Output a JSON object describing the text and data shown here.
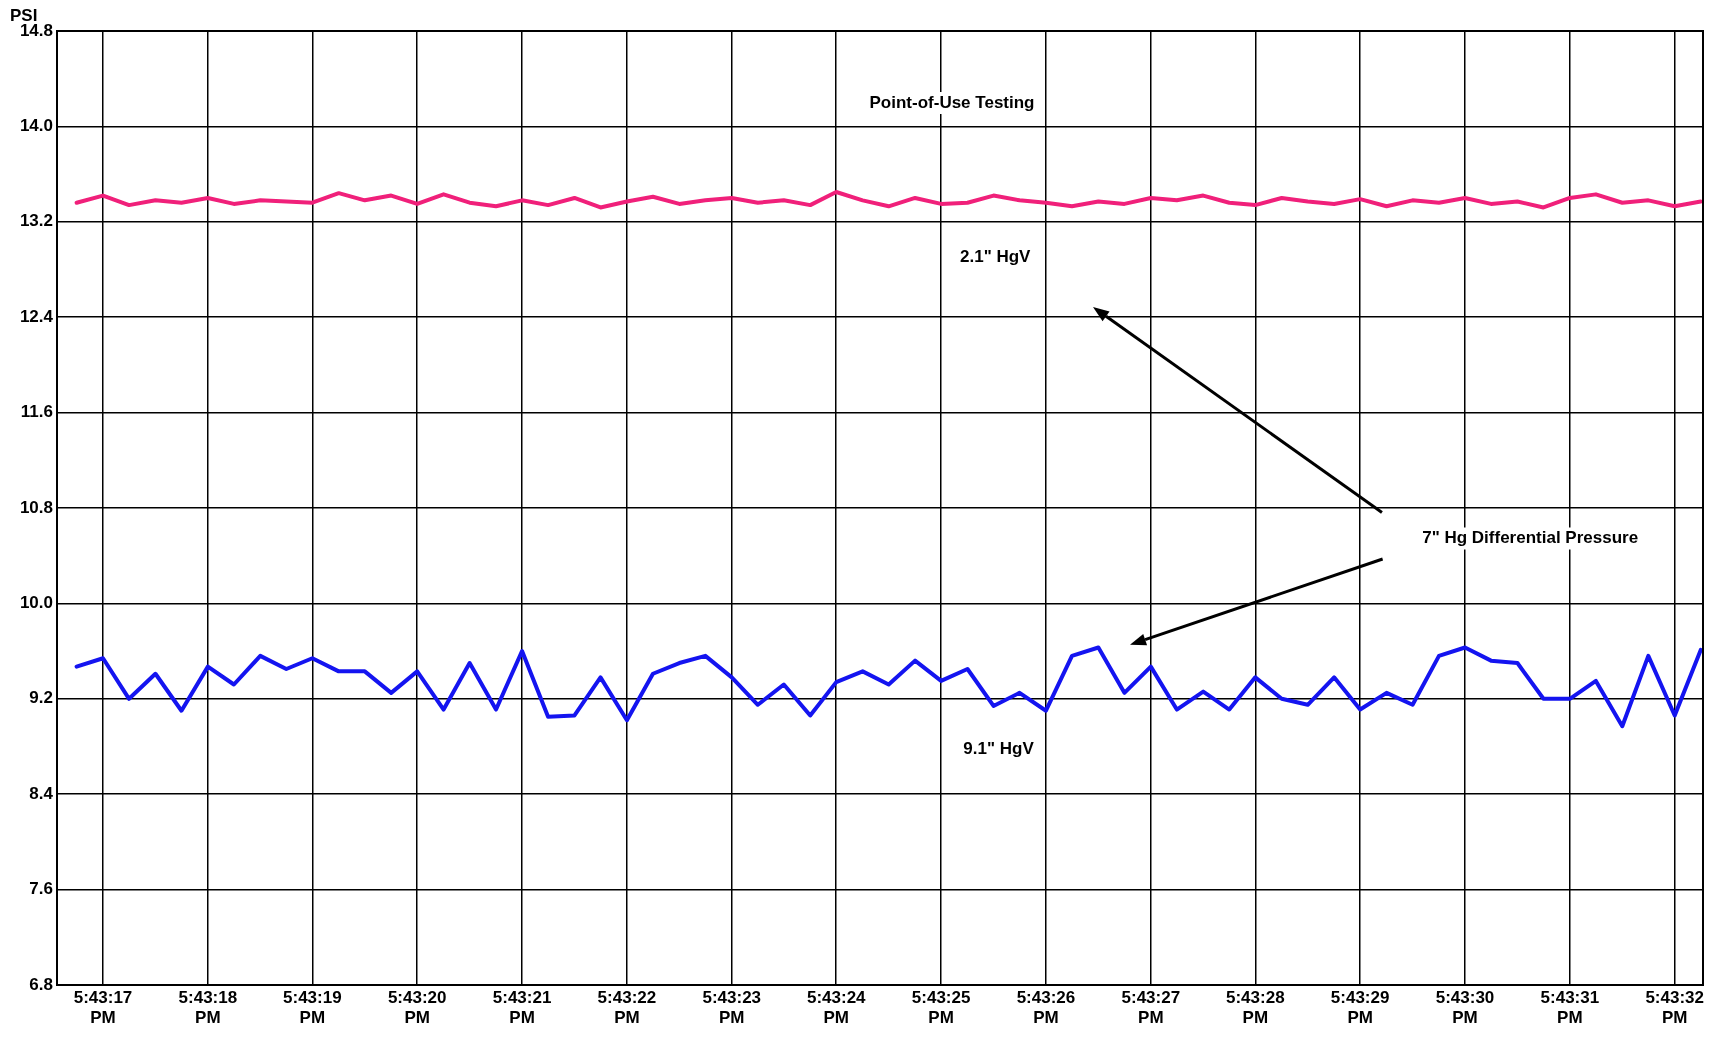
{
  "chart_data": {
    "type": "line",
    "title": "Point-of-Use Testing",
    "ylabel": "PSI",
    "x": [
      17.721319,
      17.721389,
      17.721458,
      17.721528,
      17.721597,
      17.721667,
      17.721736,
      17.721806,
      17.721875,
      17.721944,
      17.722014,
      17.722083,
      17.722153,
      17.722222,
      17.722292,
      17.722361,
      17.722431,
      17.7225,
      17.722569,
      17.722639,
      17.722708,
      17.722778,
      17.722847,
      17.722917,
      17.722986,
      17.723056,
      17.723125,
      17.723194,
      17.723264,
      17.723333,
      17.723403,
      17.723472,
      17.723542,
      17.723611,
      17.723681,
      17.72375,
      17.723819,
      17.723889,
      17.723958,
      17.724028,
      17.724097,
      17.724167,
      17.724236,
      17.724306,
      17.724375,
      17.724444,
      17.724514,
      17.724583,
      17.724653,
      17.724722,
      17.724792,
      17.724861,
      17.724931,
      17.725,
      17.725069,
      17.725139,
      17.725208,
      17.725278,
      17.725347,
      17.725417,
      17.725486,
      17.725556,
      17.725625
    ],
    "series": [
      {
        "color": "#f0207a",
        "values": [
          13.36,
          13.42,
          13.34,
          13.38,
          13.36,
          13.4,
          13.35,
          13.38,
          13.37,
          13.36,
          13.44,
          13.38,
          13.42,
          13.35,
          13.43,
          13.36,
          13.33,
          13.38,
          13.34,
          13.4,
          13.32,
          13.37,
          13.41,
          13.35,
          13.38,
          13.4,
          13.36,
          13.38,
          13.34,
          13.45,
          13.38,
          13.33,
          13.4,
          13.35,
          13.36,
          13.42,
          13.38,
          13.36,
          13.33,
          13.37,
          13.35,
          13.4,
          13.38,
          13.42,
          13.36,
          13.34,
          13.4,
          13.37,
          13.35,
          13.39,
          13.33,
          13.38,
          13.36,
          13.4,
          13.35,
          13.37,
          13.32,
          13.4,
          13.43,
          13.36,
          13.38,
          13.33,
          13.37
        ]
      },
      {
        "color": "#1414f0",
        "values": [
          9.47,
          9.54,
          9.2,
          9.41,
          9.1,
          9.47,
          9.32,
          9.56,
          9.45,
          9.54,
          9.43,
          9.43,
          9.25,
          9.43,
          9.11,
          9.5,
          9.11,
          9.6,
          9.05,
          9.06,
          9.38,
          9.02,
          9.41,
          9.5,
          9.56,
          9.38,
          9.15,
          9.32,
          9.06,
          9.34,
          9.43,
          9.32,
          9.52,
          9.35,
          9.45,
          9.14,
          9.25,
          9.1,
          9.56,
          9.63,
          9.25,
          9.47,
          9.11,
          9.26,
          9.11,
          9.38,
          9.2,
          9.15,
          9.38,
          9.11,
          9.25,
          9.15,
          9.56,
          9.63,
          9.52,
          9.5,
          9.2,
          9.2,
          9.35,
          8.97,
          9.56,
          9.06,
          9.61
        ]
      }
    ],
    "xlim": [
      17.721267,
      17.725631
    ],
    "xticks": [
      {
        "value": 17.721389,
        "label": "5:43:17 PM"
      },
      {
        "value": 17.721667,
        "label": "5:43:18 PM"
      },
      {
        "value": 17.721944,
        "label": "5:43:19 PM"
      },
      {
        "value": 17.722222,
        "label": "5:43:20 PM"
      },
      {
        "value": 17.7225,
        "label": "5:43:21 PM"
      },
      {
        "value": 17.722778,
        "label": "5:43:22 PM"
      },
      {
        "value": 17.723056,
        "label": "5:43:23 PM"
      },
      {
        "value": 17.723333,
        "label": "5:43:24 PM"
      },
      {
        "value": 17.723611,
        "label": "5:43:25 PM"
      },
      {
        "value": 17.723889,
        "label": "5:43:26 PM"
      },
      {
        "value": 17.724167,
        "label": "5:43:27 PM"
      },
      {
        "value": 17.724444,
        "label": "5:43:28 PM"
      },
      {
        "value": 17.724722,
        "label": "5:43:29 PM"
      },
      {
        "value": 17.725,
        "label": "5:43:30 PM"
      },
      {
        "value": 17.725278,
        "label": "5:43:31 PM"
      },
      {
        "value": 17.725556,
        "label": "5:43:32 PM"
      }
    ],
    "ylim": [
      6.8,
      14.8
    ],
    "yticks": [
      {
        "value": 6.8,
        "label": "6.8"
      },
      {
        "value": 7.6,
        "label": "7.6"
      },
      {
        "value": 8.4,
        "label": "8.4"
      },
      {
        "value": 9.2,
        "label": "9.2"
      },
      {
        "value": 10.0,
        "label": "10.0"
      },
      {
        "value": 10.8,
        "label": "10.8"
      },
      {
        "value": 11.6,
        "label": "11.6"
      },
      {
        "value": 12.4,
        "label": "12.4"
      },
      {
        "value": 13.2,
        "label": "13.2"
      },
      {
        "value": 14.0,
        "label": "14.0"
      },
      {
        "value": 14.8,
        "label": "14.8"
      }
    ],
    "grid": true,
    "legend": false,
    "marker": "none",
    "line_style": "solid",
    "annotations": [
      "2.1\" HgV",
      "9.1\" HgV",
      "7\" Hg Differential Pressure"
    ]
  }
}
